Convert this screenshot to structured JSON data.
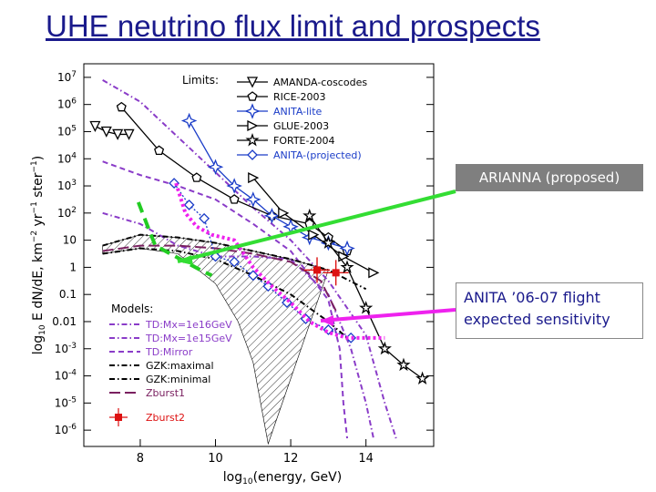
{
  "slide": {
    "title": "UHE neutrino flux limit and prospects",
    "callouts": {
      "arianna": "ARIANNA (proposed)",
      "anita_line1": "ANITA ’06-07 flight",
      "anita_line2": "expected sensitivity"
    }
  },
  "chart_data": {
    "type": "line",
    "title": "",
    "xlabel": "log10(energy, GeV)",
    "ylabel": "log10 E dN/dE, km-2 yr-1 ster-1)",
    "xlim": [
      6.5,
      15.8
    ],
    "ylim": [
      -6.6,
      7.5
    ],
    "x_ticks": [
      "8",
      "10",
      "12",
      "14"
    ],
    "y_ticks": [
      "10^7",
      "10^6",
      "10^5",
      "10^4",
      "10^3",
      "10^2",
      "10",
      "1",
      "0.1",
      "0.01",
      "10^-3",
      "10^-4",
      "10^-5",
      "10^-6"
    ],
    "legend_limits_title": "Limits:",
    "legend_models_title": "Models:",
    "limits": [
      {
        "name": "AMANDA-coscodes",
        "color": "#000000",
        "marker": "tri-down",
        "points": [
          [
            6.8,
            5.2
          ],
          [
            7.1,
            5.0
          ],
          [
            7.4,
            4.9
          ],
          [
            7.7,
            4.9
          ]
        ]
      },
      {
        "name": "RICE-2003",
        "color": "#000000",
        "marker": "pentagon",
        "points": [
          [
            7.5,
            5.9
          ],
          [
            8.5,
            4.3
          ],
          [
            9.5,
            3.3
          ],
          [
            10.5,
            2.5
          ],
          [
            11.5,
            1.9
          ],
          [
            12.5,
            1.6
          ],
          [
            13.0,
            1.1
          ],
          [
            13.5,
            0.6
          ]
        ]
      },
      {
        "name": "ANITA-lite",
        "color": "#1a3cc8",
        "marker": "star4",
        "points": [
          [
            9.3,
            5.4
          ],
          [
            10.0,
            3.7
          ],
          [
            10.5,
            3.0
          ],
          [
            11.0,
            2.5
          ],
          [
            11.5,
            1.9
          ],
          [
            12.0,
            1.5
          ],
          [
            12.5,
            1.1
          ],
          [
            13.0,
            0.9
          ],
          [
            13.5,
            0.7
          ]
        ]
      },
      {
        "name": "GLUE-2003",
        "color": "#000000",
        "marker": "tri-right",
        "points": [
          [
            11.0,
            3.3
          ],
          [
            11.8,
            2.0
          ],
          [
            12.6,
            1.2
          ],
          [
            13.4,
            0.4
          ],
          [
            14.2,
            -0.2
          ]
        ]
      },
      {
        "name": "FORTE-2004",
        "color": "#000000",
        "marker": "star5",
        "points": [
          [
            12.5,
            1.9
          ],
          [
            13.0,
            0.9
          ],
          [
            13.5,
            0.0
          ],
          [
            14.0,
            -1.5
          ],
          [
            14.5,
            -3.0
          ],
          [
            15.0,
            -3.6
          ],
          [
            15.5,
            -4.1
          ]
        ]
      },
      {
        "name": "ANITA-(projected)",
        "color": "#1a3cc8",
        "marker": "diamond",
        "points": [
          [
            8.9,
            3.1
          ],
          [
            9.3,
            2.3
          ],
          [
            9.7,
            1.8
          ],
          [
            10.0,
            0.4
          ],
          [
            10.5,
            0.2
          ],
          [
            11.0,
            -0.3
          ],
          [
            11.4,
            -0.7
          ],
          [
            11.9,
            -1.3
          ],
          [
            12.4,
            -1.9
          ],
          [
            13.0,
            -2.3
          ],
          [
            13.6,
            -2.6
          ]
        ]
      }
    ],
    "models": [
      {
        "name": "TD:Mx=1e16GeV",
        "color": "#8a3cc8",
        "style": "dashdot",
        "points": [
          [
            7.0,
            6.9
          ],
          [
            8.0,
            6.1
          ],
          [
            9.0,
            4.8
          ],
          [
            10.0,
            3.5
          ],
          [
            11.0,
            2.2
          ],
          [
            12.0,
            1.0
          ],
          [
            13.0,
            -0.5
          ],
          [
            14.0,
            -2.5
          ],
          [
            14.5,
            -5.0
          ],
          [
            14.8,
            -6.3
          ]
        ]
      },
      {
        "name": "TD:Mx=1e15GeV",
        "color": "#8a3cc8",
        "style": "dashdot",
        "points": [
          [
            7.0,
            2.0
          ],
          [
            8.0,
            1.6
          ],
          [
            9.0,
            0.8
          ],
          [
            10.0,
            0.4
          ],
          [
            11.0,
            0.4
          ],
          [
            12.0,
            0.3
          ],
          [
            13.0,
            -1.0
          ],
          [
            13.6,
            -3.0
          ],
          [
            14.0,
            -5.0
          ],
          [
            14.2,
            -6.3
          ]
        ]
      },
      {
        "name": "TD:Mirror",
        "color": "#8a3cc8",
        "style": "dashed",
        "points": [
          [
            7.0,
            3.9
          ],
          [
            8.0,
            3.4
          ],
          [
            9.0,
            3.0
          ],
          [
            10.0,
            2.5
          ],
          [
            11.0,
            1.6
          ],
          [
            12.0,
            0.6
          ],
          [
            13.0,
            -1.2
          ],
          [
            13.3,
            -3.0
          ],
          [
            13.4,
            -5.0
          ],
          [
            13.5,
            -6.3
          ]
        ]
      },
      {
        "name": "GZK:maximal",
        "color": "#000000",
        "style": "dashdot",
        "points": [
          [
            7.0,
            0.8
          ],
          [
            8.0,
            1.2
          ],
          [
            9.0,
            1.1
          ],
          [
            10.0,
            0.9
          ],
          [
            11.0,
            0.6
          ],
          [
            12.0,
            0.3
          ],
          [
            13.0,
            -0.1
          ],
          [
            14.0,
            -0.8
          ]
        ]
      },
      {
        "name": "GZK:minimal",
        "color": "#000000",
        "style": "dashdot",
        "points": [
          [
            7.0,
            0.5
          ],
          [
            8.0,
            0.7
          ],
          [
            9.0,
            0.6
          ],
          [
            10.0,
            0.3
          ],
          [
            11.0,
            -0.3
          ],
          [
            12.0,
            -1.0
          ],
          [
            13.0,
            -2.0
          ],
          [
            13.5,
            -2.6
          ]
        ]
      },
      {
        "name": "Zburst1",
        "color": "#7a2060",
        "style": "longdash",
        "points": [
          [
            7.0,
            0.6
          ],
          [
            8.0,
            0.8
          ],
          [
            9.0,
            0.8
          ],
          [
            10.0,
            0.7
          ],
          [
            11.0,
            0.5
          ],
          [
            12.0,
            0.2
          ],
          [
            12.8,
            -0.5
          ],
          [
            13.2,
            -1.6
          ]
        ]
      },
      {
        "name": "Zburst2",
        "color": "#dd1111",
        "style": "marker",
        "points": [
          [
            12.7,
            -0.1
          ],
          [
            13.2,
            -0.2
          ]
        ]
      }
    ],
    "overlays": [
      {
        "name": "ARIANNA (proposed)",
        "color": "#22cc22",
        "style": "thick-dashed",
        "points": [
          [
            7.95,
            2.4
          ],
          [
            8.2,
            1.5
          ],
          [
            8.4,
            0.8
          ],
          [
            8.8,
            0.5
          ],
          [
            9.6,
            -0.1
          ],
          [
            9.9,
            -0.3
          ]
        ]
      },
      {
        "name": "ANITA '06-07 flight expected sensitivity",
        "color": "#ee22ee",
        "style": "thick-dotted",
        "points": [
          [
            8.95,
            3.1
          ],
          [
            9.2,
            2.0
          ],
          [
            9.5,
            1.5
          ],
          [
            9.9,
            1.2
          ],
          [
            10.5,
            1.0
          ],
          [
            11.0,
            0.0
          ],
          [
            11.5,
            -0.7
          ],
          [
            12.0,
            -1.3
          ],
          [
            12.5,
            -2.0
          ],
          [
            13.0,
            -2.4
          ],
          [
            13.5,
            -2.6
          ],
          [
            14.0,
            -2.6
          ],
          [
            14.5,
            -2.6
          ]
        ]
      }
    ],
    "hatched_band": {
      "upper": [
        [
          7.0,
          0.8
        ],
        [
          8.0,
          1.2
        ],
        [
          9.0,
          1.1
        ],
        [
          10.0,
          0.9
        ],
        [
          11.0,
          0.6
        ],
        [
          12.0,
          0.3
        ],
        [
          13.0,
          -0.1
        ]
      ],
      "lower": [
        [
          7.0,
          0.5
        ],
        [
          8.0,
          0.7
        ],
        [
          9.0,
          0.5
        ],
        [
          10.0,
          -0.6
        ],
        [
          10.6,
          -2.0
        ],
        [
          11.0,
          -3.5
        ],
        [
          11.4,
          -6.5
        ]
      ]
    },
    "grid": false,
    "legend": "top-right, bottom-left"
  }
}
